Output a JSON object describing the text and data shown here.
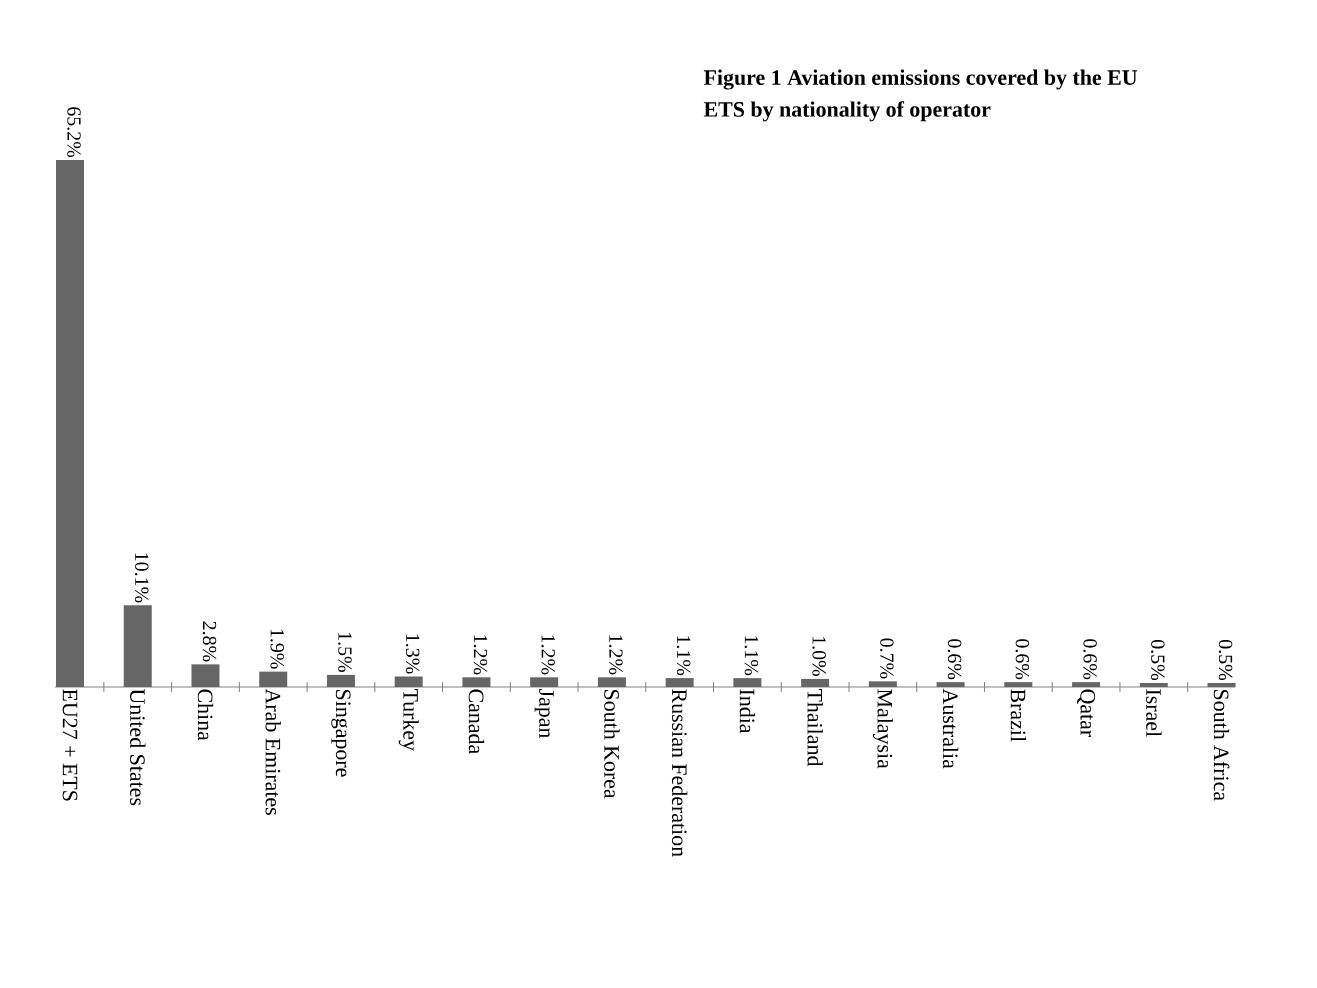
{
  "chart_data": {
    "type": "bar",
    "title": "Figure 1 Aviation emissions covered by the EU ETS by nationality of operator",
    "categories": [
      "EU27 + ETS",
      "United States",
      "China",
      "Arab Emirates",
      "Singapore",
      "Turkey",
      "Canada",
      "Japan",
      "South Korea",
      "Russian Federation",
      "India",
      "Thailand",
      "Malaysia",
      "Australia",
      "Brazil",
      "Qatar",
      "Israel",
      "South Africa"
    ],
    "values": [
      65.2,
      10.1,
      2.8,
      1.9,
      1.5,
      1.3,
      1.2,
      1.2,
      1.2,
      1.1,
      1.1,
      1.0,
      0.7,
      0.6,
      0.6,
      0.6,
      0.5,
      0.5
    ],
    "value_labels": [
      "65.2%",
      "10.1%",
      "2.8%",
      "1.9%",
      "1.5%",
      "1.3%",
      "1.2%",
      "1.2%",
      "1.2%",
      "1.1%",
      "1.1%",
      "1.0%",
      "0.7%",
      "0.6%",
      "0.6%",
      "0.6%",
      "0.5%",
      "0.5%"
    ],
    "color": "#666666"
  }
}
